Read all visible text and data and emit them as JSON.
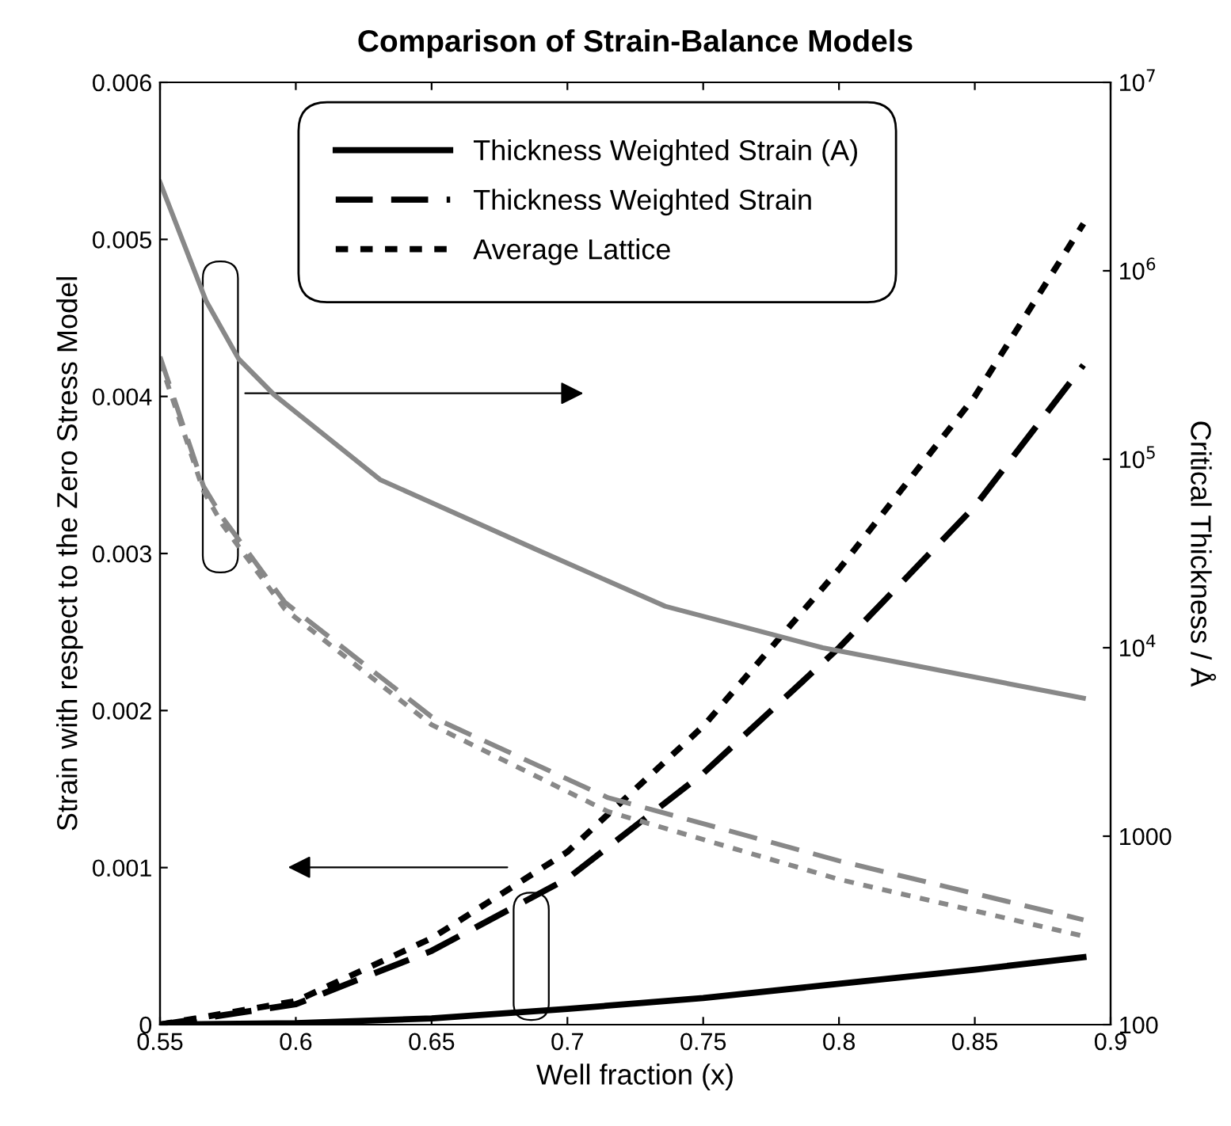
{
  "chart_data": {
    "type": "line",
    "title": "Comparison of Strain-Balance Models",
    "xlabel": "Well fraction (x)",
    "ylabel": "Strain with respect to the Zero Stress Model",
    "y2label": "Critical Thickness / Å",
    "xlim": [
      0.55,
      0.9
    ],
    "xticks": [
      0.55,
      0.6,
      0.65,
      0.7,
      0.75,
      0.8,
      0.85,
      0.9
    ],
    "ylim": [
      0,
      0.006
    ],
    "yticks": [
      0,
      0.001,
      0.002,
      0.003,
      0.004,
      0.005,
      0.006
    ],
    "y2lim": [
      100,
      10000000
    ],
    "y2ticks": [
      100,
      1000,
      {
        "value": 10000,
        "label": "10$^{4}$"
      },
      {
        "value": 100000,
        "label": "10$^{5}$"
      },
      {
        "value": 1000000,
        "label": "10$^{6}$"
      },
      {
        "value": 10000000,
        "label": "10$^{7}$"
      }
    ],
    "log": "y2",
    "grid": false,
    "legend": "top",
    "series": [
      {
        "name": "Thickness Weighted Strain (A)",
        "color": "#000000",
        "line_style": "solid",
        "x": [
          0.55,
          0.6,
          0.65,
          0.7,
          0.75,
          0.8,
          0.85,
          0.89
        ],
        "values": [
          0,
          1e-05,
          4e-05,
          0.0001,
          0.00017,
          0.00026,
          0.00035,
          0.00043
        ]
      },
      {
        "name": "Thickness Weighted Strain",
        "color": "#000000",
        "line_style": "dashed",
        "x": [
          0.55,
          0.6,
          0.65,
          0.7,
          0.75,
          0.8,
          0.85,
          0.89
        ],
        "values": [
          0,
          0.00013,
          0.00047,
          0.00093,
          0.0016,
          0.0024,
          0.0033,
          0.0042
        ]
      },
      {
        "name": "Average Lattice",
        "color": "#000000",
        "line_style": "dotted",
        "x": [
          0.55,
          0.6,
          0.65,
          0.7,
          0.75,
          0.8,
          0.85,
          0.89
        ],
        "values": [
          0,
          0.00015,
          0.00055,
          0.0011,
          0.0019,
          0.0029,
          0.004,
          0.0051
        ]
      },
      {
        "color": "#888888",
        "line_style": "solid",
        "axis": "y2",
        "x": [
          0.55,
          0.567,
          0.579,
          0.592,
          0.631,
          0.689,
          0.736,
          0.794,
          0.89
        ],
        "values": [
          2950000,
          690000,
          340000,
          220000,
          78000,
          33000,
          16600,
          10000,
          5400
        ]
      },
      {
        "color": "#888888",
        "line_style": "dashed",
        "axis": "y2",
        "x": [
          0.55,
          0.566,
          0.573,
          0.596,
          0.65,
          0.715,
          0.8,
          0.89
        ],
        "values": [
          350000,
          72000,
          49000,
          17400,
          4300,
          1600,
          740,
          360
        ]
      },
      {
        "color": "#888888",
        "line_style": "dotted",
        "axis": "y2",
        "x": [
          0.55,
          0.566,
          0.573,
          0.596,
          0.65,
          0.715,
          0.8,
          0.89
        ],
        "values": [
          330000,
          68000,
          45000,
          16000,
          3900,
          1350,
          590,
          295
        ]
      }
    ]
  }
}
